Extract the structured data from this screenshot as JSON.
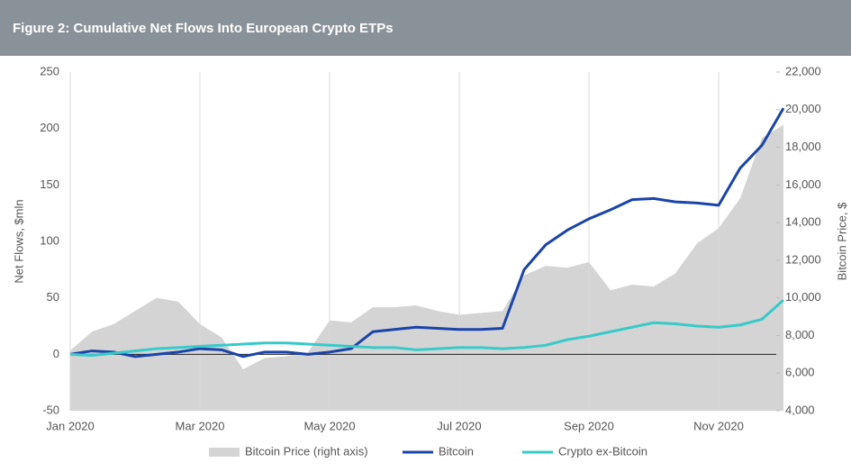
{
  "chart_data": {
    "type": "line",
    "title": "Figure 2: Cumulative Net Flows Into European Crypto ETPs",
    "y_label": "Net Flows, $mln",
    "y2_label": "Bitcoin Price, $",
    "categories": [
      "Jan 2020",
      null,
      null,
      null,
      null,
      null,
      "Mar 2020",
      null,
      null,
      null,
      null,
      null,
      "May 2020",
      null,
      null,
      null,
      null,
      null,
      "Jul 2020",
      null,
      null,
      null,
      null,
      null,
      "Sep 2020",
      null,
      null,
      null,
      null,
      null,
      "Nov 2020",
      null,
      null,
      null
    ],
    "ylim": [
      -50,
      250
    ],
    "yticks": [
      -50,
      0,
      50,
      100,
      150,
      200,
      250
    ],
    "y2lim": [
      4000,
      22000
    ],
    "y2ticks": [
      {
        "value": 4000,
        "label": "4,000"
      },
      {
        "value": 6000,
        "label": "6,000"
      },
      {
        "value": 8000,
        "label": "8,000"
      },
      {
        "value": 10000,
        "label": "10,000"
      },
      {
        "value": 12000,
        "label": "12,000"
      },
      {
        "value": 14000,
        "label": "14,000"
      },
      {
        "value": 16000,
        "label": "16,000"
      },
      {
        "value": 18000,
        "label": "18,000"
      },
      {
        "value": 20000,
        "label": "20,000"
      },
      {
        "value": 22000,
        "label": "22,000"
      }
    ],
    "grid": true,
    "legend": "bottom",
    "series": [
      {
        "name": "Bitcoin Price (right axis)",
        "color": "#d4d4d4",
        "axis": "y2",
        "style": "area",
        "values": [
          7200,
          8200,
          8600,
          9300,
          10000,
          9800,
          8600,
          7900,
          6200,
          6800,
          6900,
          7100,
          8800,
          8700,
          9500,
          9500,
          9600,
          9300,
          9100,
          9200,
          9300,
          11200,
          11700,
          11600,
          11900,
          10400,
          10700,
          10600,
          11300,
          12900,
          13700,
          15300,
          18500,
          19200
        ]
      },
      {
        "name": "Bitcoin",
        "color": "#1a44a8",
        "values": [
          0,
          3,
          2,
          -2,
          0,
          2,
          5,
          4,
          -2,
          2,
          2,
          0,
          2,
          5,
          20,
          22,
          24,
          23,
          22,
          22,
          23,
          75,
          97,
          110,
          120,
          128,
          137,
          138,
          135,
          134,
          132,
          165,
          185,
          218
        ]
      },
      {
        "name": "Crypto ex-Bitcoin",
        "color": "#38c9c9",
        "values": [
          0,
          -1,
          1,
          3,
          5,
          6,
          7,
          8,
          9,
          10,
          10,
          9,
          8,
          7,
          6,
          6,
          4,
          5,
          6,
          6,
          5,
          6,
          8,
          13,
          16,
          20,
          24,
          28,
          27,
          25,
          24,
          26,
          31,
          48
        ]
      }
    ]
  }
}
